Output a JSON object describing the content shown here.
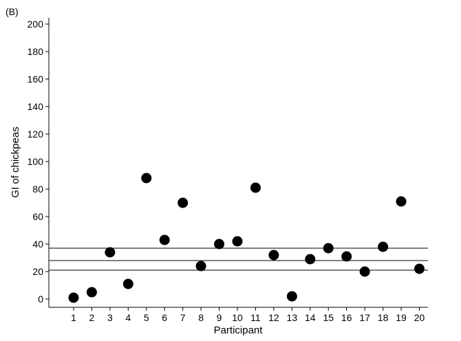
{
  "chart_data": {
    "type": "scatter",
    "panel_label": "(B)",
    "title": "",
    "xlabel": "Participant",
    "ylabel": "GI of chickpeas",
    "x": [
      1,
      2,
      3,
      4,
      5,
      6,
      7,
      8,
      9,
      10,
      11,
      12,
      13,
      14,
      15,
      16,
      17,
      18,
      19,
      20
    ],
    "y": [
      1,
      5,
      34,
      11,
      88,
      43,
      70,
      24,
      40,
      42,
      81,
      32,
      2,
      29,
      37,
      31,
      20,
      38,
      71,
      22
    ],
    "xlim": [
      0,
      20.5
    ],
    "ylim": [
      -5,
      205
    ],
    "x_ticks": [
      1,
      2,
      3,
      4,
      5,
      6,
      7,
      8,
      9,
      10,
      11,
      12,
      13,
      14,
      15,
      16,
      17,
      18,
      19,
      20
    ],
    "y_ticks": [
      0,
      20,
      40,
      60,
      80,
      100,
      120,
      140,
      160,
      180,
      200
    ],
    "reference_lines": [
      {
        "name": "upper",
        "y": 37
      },
      {
        "name": "mean",
        "y": 28
      },
      {
        "name": "lower",
        "y": 21
      }
    ],
    "marker_color": "#000000",
    "grid": false,
    "legend": "none"
  }
}
